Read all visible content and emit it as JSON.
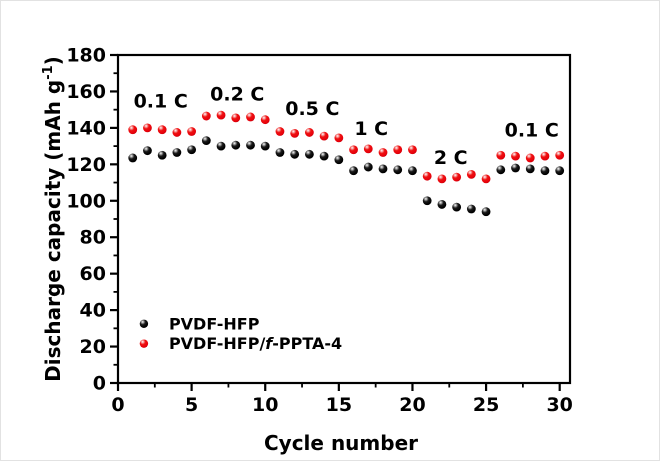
{
  "figure": {
    "background": "#ffffff",
    "border_color": "#e2e2e2",
    "axis_color": "#000000"
  },
  "chart_data": {
    "type": "scatter",
    "title": "",
    "xlabel": "Cycle number",
    "ylabel": "Discharge capacity (mAh g-1)",
    "ylabel_main": "Discharge capacity (mAh g",
    "ylabel_sup": "-1",
    "ylabel_end": ")",
    "xlim": [
      0,
      30.7
    ],
    "ylim": [
      0,
      180
    ],
    "x_major_ticks": [
      0,
      5,
      10,
      15,
      20,
      25,
      30
    ],
    "x_minor_ticks": [
      2.5,
      7.5,
      12.5,
      17.5,
      22.5,
      27.5
    ],
    "y_major_ticks": [
      0,
      20,
      40,
      60,
      80,
      100,
      120,
      140,
      160,
      180
    ],
    "y_minor_ticks": [
      10,
      30,
      50,
      70,
      90,
      110,
      130,
      150,
      170
    ],
    "grid": false,
    "x": [
      1,
      2,
      3,
      4,
      5,
      6,
      7,
      8,
      9,
      10,
      11,
      12,
      13,
      14,
      15,
      16,
      17,
      18,
      19,
      20,
      21,
      22,
      23,
      24,
      25,
      26,
      27,
      28,
      29,
      30
    ],
    "series": [
      {
        "name": "PVDF-HFP",
        "color": "#000000",
        "color_mid": "#1a1a1a",
        "color_dark": "#000000",
        "values": [
          123.5,
          127.5,
          125,
          126.5,
          128,
          133,
          130,
          130.5,
          130.5,
          130,
          126.5,
          125.5,
          125.5,
          124.5,
          122.5,
          116.5,
          118.5,
          117.5,
          117,
          116.5,
          100,
          98,
          96.5,
          95.5,
          94,
          117,
          118,
          117.5,
          116.5,
          116.5
        ]
      },
      {
        "name": "PVDF-HFP/f-PPTA-4",
        "name_parts": {
          "prefix": "PVDF-HFP/",
          "italic": "f",
          "suffix": "-PPTA-4"
        },
        "color": "#e8000b",
        "color_mid": "#ee1111",
        "color_dark": "#a80007",
        "values": [
          139,
          140,
          139,
          137.5,
          138,
          146.5,
          147,
          145.5,
          146,
          144.5,
          138,
          137,
          137.5,
          135.5,
          134.5,
          128,
          128.5,
          126.5,
          128,
          128,
          113.5,
          112,
          113,
          114.5,
          112,
          125,
          124.5,
          123.5,
          124.5,
          125
        ]
      }
    ],
    "annotations": [
      {
        "text": "0.1 C",
        "x": 2.9,
        "y": 155
      },
      {
        "text": "0.2 C",
        "x": 8.1,
        "y": 159
      },
      {
        "text": "0.5 C",
        "x": 13.2,
        "y": 151
      },
      {
        "text": "1 C",
        "x": 17.2,
        "y": 140
      },
      {
        "text": "2 C",
        "x": 22.6,
        "y": 124
      },
      {
        "text": "0.1 C",
        "x": 28.1,
        "y": 139
      }
    ],
    "legend": {
      "position": "lower-left",
      "marker_x": 1.76,
      "text_x": 3.46,
      "rows_y": [
        32.5,
        21.6
      ]
    }
  }
}
